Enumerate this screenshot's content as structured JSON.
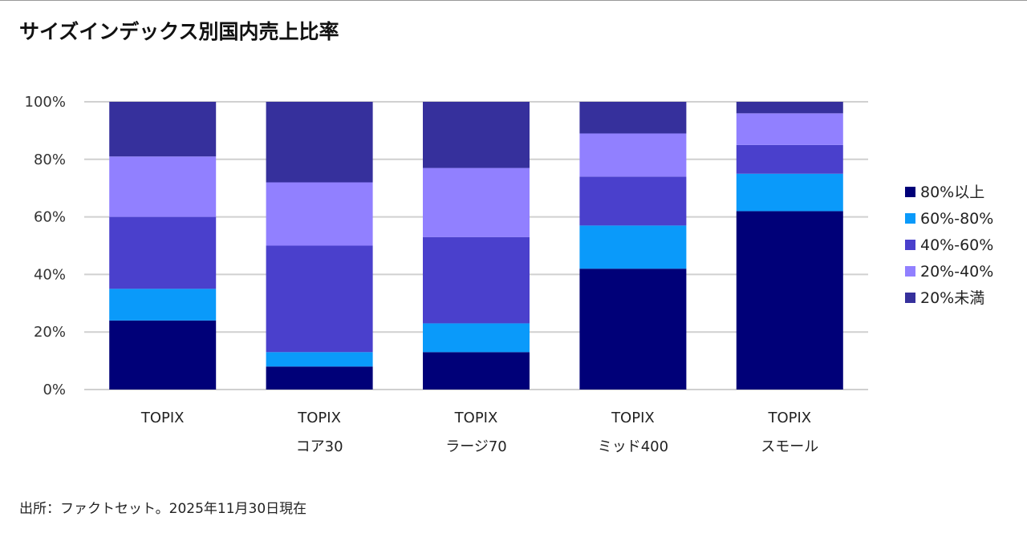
{
  "title": "サイズインデックス別国内売上比率",
  "source": "出所：ファクトセット。2025年11月30日現在",
  "chart_data": {
    "type": "bar",
    "stacked": true,
    "categories": [
      [
        "TOPIX"
      ],
      [
        "TOPIX",
        "コア30"
      ],
      [
        "TOPIX",
        "ラージ70"
      ],
      [
        "TOPIX",
        "ミッド400"
      ],
      [
        "TOPIX",
        "スモール"
      ]
    ],
    "series": [
      {
        "name": "80%以上",
        "color": "#000078",
        "values": [
          24,
          8,
          13,
          42,
          62
        ]
      },
      {
        "name": "60%-80%",
        "color": "#0A9AFA",
        "values": [
          11,
          5,
          10,
          15,
          13
        ]
      },
      {
        "name": "40%-60%",
        "color": "#4A40CC",
        "values": [
          25,
          37,
          30,
          17,
          10
        ]
      },
      {
        "name": "20%-40%",
        "color": "#9180FF",
        "values": [
          21,
          22,
          24,
          15,
          11
        ]
      },
      {
        "name": "20%未満",
        "color": "#36309C",
        "values": [
          19,
          28,
          23,
          11,
          4
        ]
      }
    ],
    "yticks": [
      "0%",
      "20%",
      "40%",
      "60%",
      "80%",
      "100%"
    ],
    "ylim": [
      0,
      100
    ],
    "grid": true,
    "legend_position": "right"
  }
}
